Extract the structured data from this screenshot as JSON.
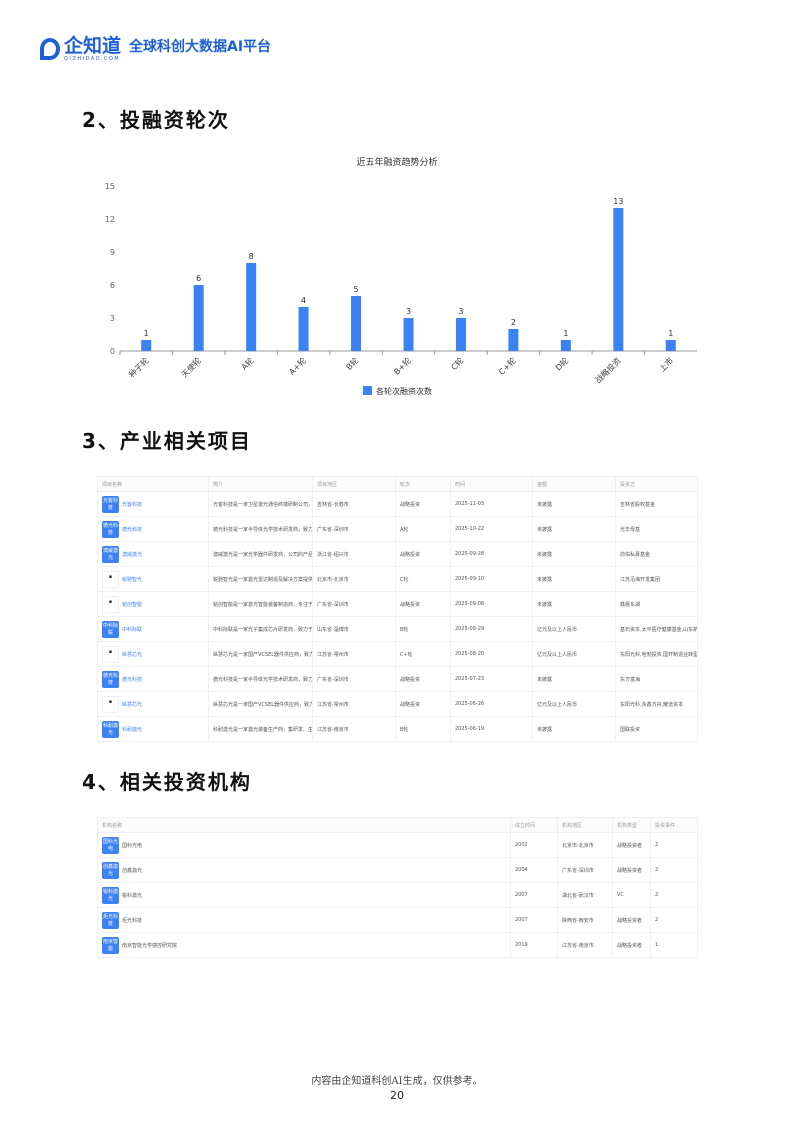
{
  "header": {
    "brand": "企知道",
    "brand_sub": "QIZHIDAO.COM",
    "slogan": "全球科创大数据AI平台"
  },
  "sections": {
    "s2": "2、投融资轮次",
    "s3": "3、产业相关项目",
    "s4": "4、相关投资机构"
  },
  "chart_data": {
    "type": "bar",
    "title": "近五年融资趋势分析",
    "categories": [
      "种子轮",
      "天使轮",
      "A轮",
      "A+轮",
      "B轮",
      "B+轮",
      "C轮",
      "C+轮",
      "D轮",
      "战略投资",
      "上市"
    ],
    "series": [
      {
        "name": "各轮次融资次数",
        "values": [
          1,
          6,
          8,
          4,
          5,
          3,
          3,
          2,
          1,
          13,
          1
        ]
      }
    ],
    "ylim": [
      0,
      15
    ],
    "yticks": [
      0,
      3,
      6,
      9,
      12,
      15
    ],
    "legend": "bottom",
    "color": "#3b82f6"
  },
  "projects": {
    "headers": [
      "项目名称",
      "简介",
      "项目地区",
      "轮次",
      "时间",
      "金额",
      "投资方"
    ],
    "rows": [
      {
        "logo": "光客科技",
        "name": "光客科技",
        "intro": "光客科技是一家卫星激光通信终端研制公司，公",
        "region": "吉林省-长春市",
        "round": "战略投资",
        "date": "2025-11-03",
        "amount": "未披露",
        "investor": "吉林省股权基金"
      },
      {
        "logo": "德光科技",
        "name": "德光科技",
        "intro": "德光科技是一家半导体光学技术研发商，致力于",
        "region": "广东省-深圳市",
        "round": "A轮",
        "date": "2025-10-22",
        "amount": "未披露",
        "investor": "光华母基"
      },
      {
        "logo": "澳威激光",
        "name": "澳威激光",
        "intro": "澳威激光是一家光学器件研发商，公司的产品包",
        "region": "浙江省-绍兴市",
        "round": "战略投资",
        "date": "2025-09-28",
        "amount": "未披露",
        "investor": "前佑私募基金"
      },
      {
        "logo": "",
        "name": "锐驰智光",
        "intro": "锐驰智光是一家激光雷达制造及解决方案提供商",
        "region": "北京市-北京市",
        "round": "C轮",
        "date": "2025-09-10",
        "amount": "未披露",
        "investor": "江苏沿海开发集团"
      },
      {
        "logo": "",
        "name": "铭创智能",
        "intro": "铭创智能是一家激光智能装备制造商，专注于激",
        "region": "广东省-深圳市",
        "round": "战略投资",
        "date": "2025-09-08",
        "amount": "未披露",
        "investor": "鑫晨东湖"
      },
      {
        "logo": "中科际联",
        "name": "中科际联",
        "intro": "中科际联是一家光子集成芯片研发商，致力于光",
        "region": "山东省-淄博市",
        "round": "B轮",
        "date": "2025-08-29",
        "amount": "亿元及以上人民币",
        "investor": "基石资本,太平医疗健康基金,山东新动"
      },
      {
        "logo": "",
        "name": "纵慧芯光",
        "intro": "纵慧芯光是一家国产VCSEL器件供应商，致力于",
        "region": "江苏省-常州市",
        "round": "C+轮",
        "date": "2025-08-20",
        "amount": "亿元及以上人民币",
        "investor": "东阳光科,哈勃投资,国开制造业转型升"
      },
      {
        "logo": "德光科技",
        "name": "德光科技",
        "intro": "德光科技是一家半导体光学技术研发商，致力于",
        "region": "广东省-深圳市",
        "round": "战略投资",
        "date": "2025-07-23",
        "amount": "未披露",
        "investor": "东方富海"
      },
      {
        "logo": "",
        "name": "纵慧芯光",
        "intro": "纵慧芯光是一家国产VCSEL器件供应商，致力于",
        "region": "江苏省-常州市",
        "round": "战略投资",
        "date": "2025-06-26",
        "amount": "亿元及以上人民币",
        "investor": "东阳光科,永鑫方舟,耀途资本"
      },
      {
        "logo": "科耐激光",
        "name": "科耐激光",
        "intro": "科耐激光是一家激光装备生产商，集研发、生产",
        "region": "江苏省-南京市",
        "round": "B轮",
        "date": "2025-06-19",
        "amount": "未披露",
        "investor": "国联投资"
      }
    ]
  },
  "investors": {
    "headers": [
      "机构名称",
      "成立时间",
      "机构地区",
      "机构类型",
      "投资事件"
    ],
    "rows": [
      {
        "logo": "国科光电",
        "name": "国科光电",
        "founded": "2002",
        "region": "北京市-北京市",
        "type": "战略投资者",
        "events": "2"
      },
      {
        "logo": "创鑫激光",
        "name": "创鑫激光",
        "founded": "2004",
        "region": "广东省-深圳市",
        "type": "战略投资者",
        "events": "2"
      },
      {
        "logo": "锐科激光",
        "name": "锐科激光",
        "founded": "2007",
        "region": "湖北省-武汉市",
        "type": "VC",
        "events": "2"
      },
      {
        "logo": "炬光科技",
        "name": "炬光科技",
        "founded": "2007",
        "region": "陕西省-西安市",
        "type": "战略投资者",
        "events": "2"
      },
      {
        "logo": "南京智能",
        "name": "南京智能光学感控研究院",
        "founded": "2019",
        "region": "江苏省-南京市",
        "type": "战略投资者",
        "events": "1"
      }
    ]
  },
  "footer": {
    "note": "内容由企知道科创AI生成，仅供参考。",
    "page": "20"
  }
}
